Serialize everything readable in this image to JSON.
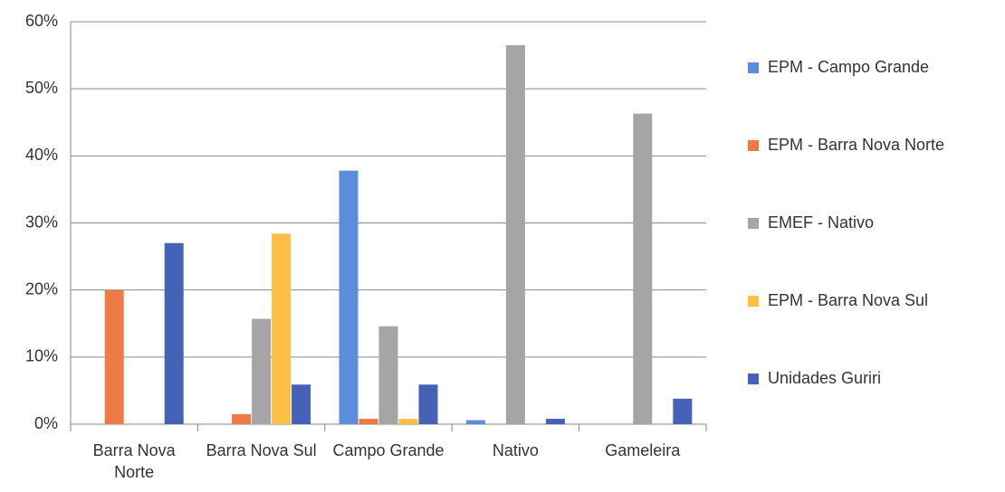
{
  "chart_data": {
    "type": "bar",
    "categories": [
      "Barra Nova Norte",
      "Barra Nova Sul",
      "Campo Grande",
      "Nativo",
      "Gameleira"
    ],
    "series": [
      {
        "name": "EPM - Campo Grande",
        "color": "#5b8dd9",
        "values": [
          0,
          0,
          37.8,
          0.6,
          0
        ]
      },
      {
        "name": "EPM - Barra Nova Norte",
        "color": "#ee7a45",
        "values": [
          20,
          1.5,
          0.8,
          0,
          0
        ]
      },
      {
        "name": "EMEF - Nativo",
        "color": "#a5a5a5",
        "values": [
          0,
          15.7,
          14.6,
          56.5,
          46.3
        ]
      },
      {
        "name": "EPM - Barra Nova Sul",
        "color": "#fbbf45",
        "values": [
          0,
          28.4,
          0.8,
          0,
          0
        ]
      },
      {
        "name": "Unidades Guriri",
        "color": "#4561b8",
        "values": [
          27,
          5.9,
          5.9,
          0.8,
          3.8
        ]
      }
    ],
    "ylim": [
      0,
      60
    ],
    "yticks": [
      {
        "value": 0,
        "label": "0%"
      },
      {
        "value": 10,
        "label": "10%"
      },
      {
        "value": 20,
        "label": "20%"
      },
      {
        "value": 30,
        "label": "30%"
      },
      {
        "value": 40,
        "label": "40%"
      },
      {
        "value": 50,
        "label": "50%"
      },
      {
        "value": 60,
        "label": "60%"
      }
    ],
    "grid": true,
    "legend": "right"
  }
}
